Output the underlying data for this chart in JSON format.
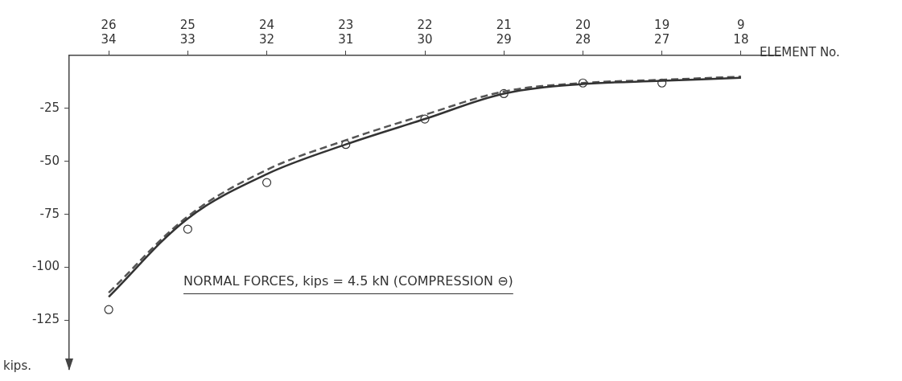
{
  "chart_data": {
    "type": "line",
    "xlabel": "ELEMENT No.",
    "ylabel": "kips.",
    "annotations": [
      "NORMAL FORCES, kips = 4.5 kN (COMPRESSION ⊖)"
    ],
    "categories": [
      "26\n34",
      "25\n33",
      "24\n32",
      "23\n31",
      "22\n30",
      "21\n29",
      "20\n28",
      "19\n27",
      "9\n18"
    ],
    "ylim": [
      -148,
      0
    ],
    "yticks": [
      -125,
      -100,
      -75,
      -50,
      -25
    ],
    "grid": false,
    "legend": false,
    "series": [
      {
        "type": "line",
        "color": "#333333",
        "line_style": "solid",
        "marker": "none",
        "values": [
          -114,
          -77,
          -56,
          -42,
          -30,
          -18,
          -13.5,
          -12,
          -10.5
        ]
      },
      {
        "type": "line",
        "color": "#555555",
        "line_style": "dashed",
        "marker": "none",
        "values": [
          -112,
          -76,
          -54,
          -40,
          -28,
          -17,
          -13,
          -11.5,
          -10
        ]
      },
      {
        "type": "scatter",
        "color": "#333333",
        "marker": "circle",
        "values": [
          -120,
          -82,
          -60,
          -42,
          -30,
          -18,
          -13,
          -13,
          null
        ]
      }
    ]
  }
}
